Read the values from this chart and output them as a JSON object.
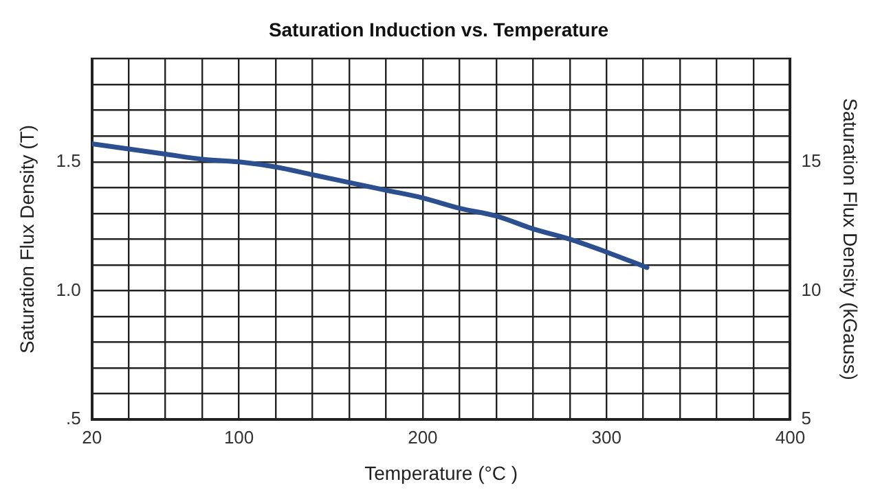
{
  "chart_data": {
    "type": "line",
    "title": "Saturation Induction vs. Temperature",
    "xlabel": "Temperature (°C )",
    "ylabel": "Saturation Flux Density (T)",
    "y2label": "Saturation Flux Density (kGauss)",
    "x": [
      20,
      40,
      60,
      80,
      100,
      120,
      140,
      160,
      180,
      200,
      220,
      240,
      260,
      280,
      300,
      322
    ],
    "series": [
      {
        "color": "#2b4f8f",
        "values": [
          1.57,
          1.55,
          1.53,
          1.51,
          1.5,
          1.48,
          1.45,
          1.42,
          1.39,
          1.36,
          1.32,
          1.29,
          1.24,
          1.2,
          1.15,
          1.09
        ]
      }
    ],
    "xlim": [
      20,
      400
    ],
    "xticks": [
      20,
      {
        "value": 40,
        "label": null
      },
      {
        "value": 60,
        "label": null
      },
      {
        "value": 80,
        "label": null
      },
      100,
      {
        "value": 120,
        "label": null
      },
      {
        "value": 140,
        "label": null
      },
      {
        "value": 160,
        "label": null
      },
      {
        "value": 180,
        "label": null
      },
      200,
      {
        "value": 220,
        "label": null
      },
      {
        "value": 240,
        "label": null
      },
      {
        "value": 260,
        "label": null
      },
      {
        "value": 280,
        "label": null
      },
      300,
      {
        "value": 320,
        "label": null
      },
      {
        "value": 340,
        "label": null
      },
      {
        "value": 360,
        "label": null
      },
      {
        "value": 380,
        "label": null
      },
      400
    ],
    "ylim": [
      0.5,
      1.9
    ],
    "yticks": [
      {
        "value": 0.5,
        "label": ".5"
      },
      {
        "value": 0.6,
        "label": null
      },
      {
        "value": 0.7,
        "label": null
      },
      {
        "value": 0.8,
        "label": null
      },
      {
        "value": 0.9,
        "label": null
      },
      {
        "value": 1.0,
        "label": "1.0"
      },
      {
        "value": 1.1,
        "label": null
      },
      {
        "value": 1.2,
        "label": null
      },
      {
        "value": 1.3,
        "label": null
      },
      {
        "value": 1.4,
        "label": null
      },
      1.5,
      {
        "value": 1.6,
        "label": null
      },
      {
        "value": 1.7,
        "label": null
      },
      {
        "value": 1.8,
        "label": null
      },
      {
        "value": 1.9,
        "label": null
      }
    ],
    "y2lim": [
      5,
      19
    ],
    "y2ticks": [
      5,
      10,
      15
    ],
    "grid": true,
    "legend": false,
    "marker": "none",
    "line_style": "solid"
  }
}
